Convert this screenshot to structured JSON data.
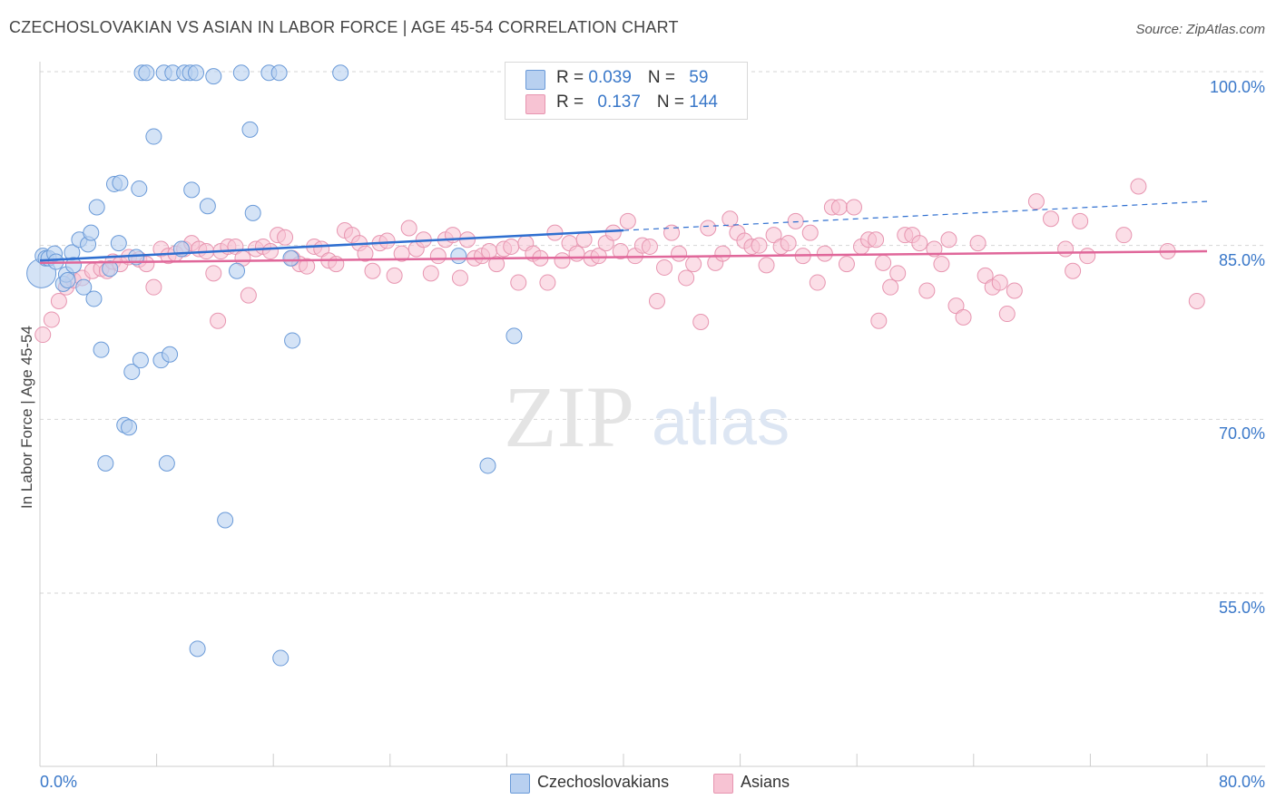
{
  "title": "CZECHOSLOVAKIAN VS ASIAN IN LABOR FORCE | AGE 45-54 CORRELATION CHART",
  "source": "Source: ZipAtlas.com",
  "watermark": {
    "zip": "ZIP",
    "atlas": "atlas"
  },
  "legend_top": [
    {
      "r_label": "R = ",
      "r_value": "0.039",
      "n_label": "N = ",
      "n_value": "59"
    },
    {
      "r_label": "R = ",
      "r_value": "0.137",
      "n_label": "N = ",
      "n_value": "144"
    }
  ],
  "legend_bottom": [
    "Czechoslovakians",
    "Asians"
  ],
  "chart_data": {
    "type": "scatter",
    "title": "CZECHOSLOVAKIAN VS ASIAN IN LABOR FORCE | AGE 45-54 CORRELATION CHART",
    "ylabel": "In Labor Force | Age 45-54",
    "xlabel": "",
    "x_tick_labels": [
      "0.0%",
      "80.0%"
    ],
    "y_tick_labels": [
      "100.0%",
      "85.0%",
      "70.0%",
      "55.0%"
    ],
    "y_ticks": [
      100,
      85,
      70,
      55
    ],
    "xlim": [
      0,
      80
    ],
    "ylim": [
      40,
      101.5
    ],
    "grid": true,
    "legend_position": "top-center",
    "colors": {
      "Czechoslovakians": {
        "fill": "#b8d0f0",
        "stroke": "#6a9ad8",
        "line": "#2f6fd0"
      },
      "Asians": {
        "fill": "#f7c3d3",
        "stroke": "#e795b0",
        "line": "#e0679a"
      }
    },
    "series": [
      {
        "name": "Czechoslovakians",
        "trend": {
          "x0": 0,
          "y0": 83.7,
          "x1": 40,
          "y1": 86.3,
          "dash_x1": 80,
          "dash_y1": 88.8
        },
        "points": [
          [
            0.1,
            82.6
          ],
          [
            0.2,
            84.1
          ],
          [
            0.4,
            83.9
          ],
          [
            0.6,
            83.9
          ],
          [
            1.0,
            84.3
          ],
          [
            1.1,
            83.6
          ],
          [
            1.6,
            81.7
          ],
          [
            1.8,
            82.5
          ],
          [
            1.9,
            82.0
          ],
          [
            2.2,
            84.4
          ],
          [
            2.3,
            83.3
          ],
          [
            2.7,
            85.5
          ],
          [
            3.0,
            81.4
          ],
          [
            3.3,
            85.1
          ],
          [
            3.5,
            86.1
          ],
          [
            3.7,
            80.4
          ],
          [
            3.9,
            88.3
          ],
          [
            4.2,
            76.0
          ],
          [
            4.5,
            66.2
          ],
          [
            4.8,
            83.0
          ],
          [
            5.1,
            90.3
          ],
          [
            5.5,
            90.4
          ],
          [
            5.4,
            85.2
          ],
          [
            5.8,
            69.5
          ],
          [
            6.1,
            69.3
          ],
          [
            6.3,
            74.1
          ],
          [
            6.6,
            84.0
          ],
          [
            6.8,
            89.9
          ],
          [
            6.9,
            75.1
          ],
          [
            7.0,
            99.9
          ],
          [
            7.3,
            99.9
          ],
          [
            7.8,
            94.4
          ],
          [
            8.3,
            75.1
          ],
          [
            8.5,
            99.9
          ],
          [
            8.7,
            66.2
          ],
          [
            8.9,
            75.6
          ],
          [
            9.1,
            99.9
          ],
          [
            9.7,
            84.7
          ],
          [
            9.9,
            99.9
          ],
          [
            10.3,
            99.9
          ],
          [
            10.4,
            89.8
          ],
          [
            10.7,
            99.9
          ],
          [
            10.8,
            50.2
          ],
          [
            11.5,
            88.4
          ],
          [
            11.9,
            99.6
          ],
          [
            12.7,
            61.3
          ],
          [
            13.5,
            82.8
          ],
          [
            13.8,
            99.9
          ],
          [
            14.4,
            95.0
          ],
          [
            14.6,
            87.8
          ],
          [
            15.7,
            99.9
          ],
          [
            16.4,
            99.9
          ],
          [
            16.5,
            49.4
          ],
          [
            17.2,
            83.9
          ],
          [
            17.3,
            76.8
          ],
          [
            20.6,
            99.9
          ],
          [
            28.7,
            84.1
          ],
          [
            30.7,
            66.0
          ],
          [
            32.5,
            77.2
          ]
        ]
      },
      {
        "name": "Asians",
        "trend": {
          "x0": 0,
          "y0": 83.5,
          "x1": 80,
          "y1": 84.5
        },
        "points": [
          [
            0.2,
            77.3
          ],
          [
            0.8,
            78.6
          ],
          [
            1.3,
            80.2
          ],
          [
            1.8,
            81.4
          ],
          [
            2.3,
            82.0
          ],
          [
            2.9,
            82.2
          ],
          [
            3.6,
            82.8
          ],
          [
            4.2,
            83.0
          ],
          [
            4.6,
            82.8
          ],
          [
            5.0,
            83.6
          ],
          [
            5.5,
            83.4
          ],
          [
            6.1,
            84.0
          ],
          [
            6.8,
            83.8
          ],
          [
            7.3,
            83.4
          ],
          [
            7.8,
            81.4
          ],
          [
            8.3,
            84.7
          ],
          [
            8.8,
            84.1
          ],
          [
            9.3,
            84.3
          ],
          [
            9.9,
            84.7
          ],
          [
            10.4,
            85.2
          ],
          [
            10.9,
            84.7
          ],
          [
            11.4,
            84.5
          ],
          [
            11.9,
            82.6
          ],
          [
            12.4,
            84.5
          ],
          [
            12.9,
            84.9
          ],
          [
            13.4,
            84.9
          ],
          [
            13.9,
            83.9
          ],
          [
            14.3,
            80.7
          ],
          [
            14.8,
            84.7
          ],
          [
            15.3,
            84.9
          ],
          [
            15.8,
            84.5
          ],
          [
            16.3,
            85.9
          ],
          [
            16.8,
            85.7
          ],
          [
            17.3,
            83.9
          ],
          [
            17.8,
            83.4
          ],
          [
            18.3,
            83.2
          ],
          [
            18.8,
            84.9
          ],
          [
            19.3,
            84.7
          ],
          [
            19.8,
            83.7
          ],
          [
            20.3,
            83.4
          ],
          [
            20.9,
            86.3
          ],
          [
            21.4,
            85.9
          ],
          [
            21.9,
            85.2
          ],
          [
            22.3,
            84.3
          ],
          [
            22.8,
            82.8
          ],
          [
            23.3,
            85.2
          ],
          [
            23.8,
            85.4
          ],
          [
            24.3,
            82.4
          ],
          [
            24.8,
            84.3
          ],
          [
            25.3,
            86.5
          ],
          [
            25.8,
            84.7
          ],
          [
            26.3,
            85.5
          ],
          [
            26.8,
            82.6
          ],
          [
            27.3,
            84.1
          ],
          [
            27.8,
            85.5
          ],
          [
            28.3,
            85.9
          ],
          [
            28.8,
            82.2
          ],
          [
            29.3,
            85.5
          ],
          [
            29.8,
            83.9
          ],
          [
            30.3,
            84.1
          ],
          [
            30.8,
            84.5
          ],
          [
            31.3,
            83.4
          ],
          [
            31.8,
            84.7
          ],
          [
            32.3,
            84.9
          ],
          [
            32.8,
            81.8
          ],
          [
            33.3,
            85.2
          ],
          [
            33.8,
            84.3
          ],
          [
            34.3,
            83.9
          ],
          [
            34.8,
            81.8
          ],
          [
            35.3,
            86.1
          ],
          [
            35.8,
            83.7
          ],
          [
            36.3,
            85.2
          ],
          [
            36.8,
            84.3
          ],
          [
            37.3,
            85.5
          ],
          [
            37.8,
            83.9
          ],
          [
            38.3,
            84.1
          ],
          [
            38.8,
            85.2
          ],
          [
            39.3,
            86.1
          ],
          [
            39.8,
            84.5
          ],
          [
            40.3,
            87.1
          ],
          [
            40.8,
            84.1
          ],
          [
            41.3,
            85.0
          ],
          [
            41.8,
            84.9
          ],
          [
            42.3,
            80.2
          ],
          [
            42.8,
            83.1
          ],
          [
            43.3,
            86.1
          ],
          [
            43.8,
            84.3
          ],
          [
            44.3,
            82.2
          ],
          [
            44.8,
            83.4
          ],
          [
            45.3,
            78.4
          ],
          [
            45.8,
            86.5
          ],
          [
            46.3,
            83.5
          ],
          [
            46.8,
            84.3
          ],
          [
            47.3,
            87.3
          ],
          [
            47.8,
            86.1
          ],
          [
            48.3,
            85.4
          ],
          [
            48.8,
            84.9
          ],
          [
            49.3,
            85.0
          ],
          [
            49.8,
            83.3
          ],
          [
            50.3,
            85.9
          ],
          [
            50.8,
            84.9
          ],
          [
            51.3,
            85.2
          ],
          [
            51.8,
            87.1
          ],
          [
            52.3,
            84.1
          ],
          [
            52.8,
            86.1
          ],
          [
            53.3,
            81.8
          ],
          [
            53.8,
            84.3
          ],
          [
            54.3,
            88.3
          ],
          [
            54.8,
            88.3
          ],
          [
            55.3,
            83.4
          ],
          [
            55.8,
            88.3
          ],
          [
            56.3,
            84.9
          ],
          [
            56.8,
            85.5
          ],
          [
            57.3,
            85.5
          ],
          [
            57.8,
            83.5
          ],
          [
            58.3,
            81.4
          ],
          [
            58.8,
            82.6
          ],
          [
            59.3,
            85.9
          ],
          [
            59.8,
            85.9
          ],
          [
            60.3,
            85.2
          ],
          [
            60.8,
            81.1
          ],
          [
            61.3,
            84.7
          ],
          [
            61.8,
            83.4
          ],
          [
            62.3,
            85.5
          ],
          [
            62.8,
            79.8
          ],
          [
            63.3,
            78.8
          ],
          [
            64.3,
            85.2
          ],
          [
            64.8,
            82.4
          ],
          [
            65.3,
            81.4
          ],
          [
            65.8,
            81.8
          ],
          [
            66.3,
            79.1
          ],
          [
            66.8,
            81.1
          ],
          [
            68.3,
            88.8
          ],
          [
            69.3,
            87.3
          ],
          [
            70.3,
            84.7
          ],
          [
            70.8,
            82.8
          ],
          [
            71.3,
            87.1
          ],
          [
            71.8,
            84.1
          ],
          [
            74.3,
            85.9
          ],
          [
            75.3,
            90.1
          ],
          [
            77.3,
            84.5
          ],
          [
            79.3,
            80.2
          ],
          [
            12.2,
            78.5
          ],
          [
            57.5,
            78.5
          ]
        ]
      }
    ]
  }
}
